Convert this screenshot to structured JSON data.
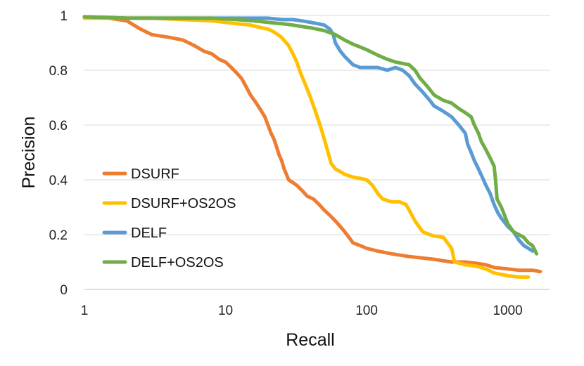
{
  "chart_data": {
    "type": "line",
    "xlabel": "Recall",
    "ylabel": "Precision",
    "xscale": "log",
    "xlim": [
      1,
      2000
    ],
    "ylim": [
      0,
      1
    ],
    "xticks": [
      1,
      10,
      100,
      1000
    ],
    "xtick_labels": [
      "1",
      "10",
      "100",
      "1000"
    ],
    "yticks": [
      0,
      0.2,
      0.4,
      0.6,
      0.8,
      1
    ],
    "ytick_labels": [
      "0",
      "0.2",
      "0.4",
      "0.6",
      "0.8",
      "1"
    ],
    "grid": "horizontal",
    "legend_placement": "lower-left",
    "series": [
      {
        "name": "DSURF",
        "color": "#ed7d31",
        "points": [
          [
            1,
            0.995
          ],
          [
            1.5,
            0.99
          ],
          [
            2,
            0.98
          ],
          [
            2.5,
            0.95
          ],
          [
            3,
            0.93
          ],
          [
            4,
            0.92
          ],
          [
            5,
            0.91
          ],
          [
            6,
            0.89
          ],
          [
            7,
            0.87
          ],
          [
            8,
            0.86
          ],
          [
            9,
            0.84
          ],
          [
            10,
            0.83
          ],
          [
            11,
            0.81
          ],
          [
            12,
            0.79
          ],
          [
            13,
            0.77
          ],
          [
            14,
            0.74
          ],
          [
            15,
            0.71
          ],
          [
            16,
            0.69
          ],
          [
            17,
            0.67
          ],
          [
            18,
            0.65
          ],
          [
            19,
            0.63
          ],
          [
            20,
            0.6
          ],
          [
            21,
            0.57
          ],
          [
            22,
            0.55
          ],
          [
            23,
            0.52
          ],
          [
            24,
            0.49
          ],
          [
            25,
            0.47
          ],
          [
            26,
            0.44
          ],
          [
            27,
            0.42
          ],
          [
            28,
            0.4
          ],
          [
            30,
            0.39
          ],
          [
            32,
            0.38
          ],
          [
            35,
            0.36
          ],
          [
            38,
            0.34
          ],
          [
            42,
            0.33
          ],
          [
            46,
            0.31
          ],
          [
            50,
            0.29
          ],
          [
            55,
            0.27
          ],
          [
            60,
            0.25
          ],
          [
            65,
            0.23
          ],
          [
            70,
            0.21
          ],
          [
            75,
            0.19
          ],
          [
            80,
            0.17
          ],
          [
            90,
            0.16
          ],
          [
            100,
            0.15
          ],
          [
            120,
            0.14
          ],
          [
            150,
            0.13
          ],
          [
            200,
            0.12
          ],
          [
            300,
            0.11
          ],
          [
            400,
            0.1
          ],
          [
            500,
            0.1
          ],
          [
            600,
            0.095
          ],
          [
            700,
            0.09
          ],
          [
            800,
            0.08
          ],
          [
            1000,
            0.075
          ],
          [
            1200,
            0.07
          ],
          [
            1500,
            0.07
          ],
          [
            1700,
            0.065
          ]
        ]
      },
      {
        "name": "DSURF+OS2OS",
        "color": "#ffc000",
        "points": [
          [
            1,
            0.99
          ],
          [
            2,
            0.99
          ],
          [
            3,
            0.99
          ],
          [
            5,
            0.985
          ],
          [
            8,
            0.98
          ],
          [
            10,
            0.975
          ],
          [
            12,
            0.97
          ],
          [
            15,
            0.965
          ],
          [
            18,
            0.955
          ],
          [
            20,
            0.95
          ],
          [
            22,
            0.94
          ],
          [
            25,
            0.92
          ],
          [
            28,
            0.89
          ],
          [
            30,
            0.86
          ],
          [
            32,
            0.83
          ],
          [
            34,
            0.79
          ],
          [
            36,
            0.76
          ],
          [
            38,
            0.73
          ],
          [
            40,
            0.7
          ],
          [
            42,
            0.67
          ],
          [
            44,
            0.64
          ],
          [
            46,
            0.61
          ],
          [
            48,
            0.58
          ],
          [
            50,
            0.55
          ],
          [
            52,
            0.52
          ],
          [
            54,
            0.49
          ],
          [
            56,
            0.46
          ],
          [
            60,
            0.44
          ],
          [
            65,
            0.43
          ],
          [
            70,
            0.42
          ],
          [
            80,
            0.41
          ],
          [
            90,
            0.405
          ],
          [
            100,
            0.4
          ],
          [
            110,
            0.38
          ],
          [
            120,
            0.35
          ],
          [
            130,
            0.33
          ],
          [
            150,
            0.32
          ],
          [
            170,
            0.32
          ],
          [
            190,
            0.31
          ],
          [
            200,
            0.29
          ],
          [
            220,
            0.25
          ],
          [
            250,
            0.21
          ],
          [
            280,
            0.2
          ],
          [
            300,
            0.195
          ],
          [
            350,
            0.19
          ],
          [
            400,
            0.15
          ],
          [
            420,
            0.1
          ],
          [
            500,
            0.09
          ],
          [
            600,
            0.085
          ],
          [
            700,
            0.075
          ],
          [
            800,
            0.06
          ],
          [
            1000,
            0.05
          ],
          [
            1200,
            0.045
          ],
          [
            1400,
            0.045
          ]
        ]
      },
      {
        "name": "DELF",
        "color": "#5b9bd5",
        "points": [
          [
            1,
            0.995
          ],
          [
            2,
            0.99
          ],
          [
            4,
            0.99
          ],
          [
            6,
            0.99
          ],
          [
            10,
            0.99
          ],
          [
            15,
            0.99
          ],
          [
            20,
            0.99
          ],
          [
            25,
            0.985
          ],
          [
            30,
            0.985
          ],
          [
            35,
            0.98
          ],
          [
            40,
            0.975
          ],
          [
            45,
            0.97
          ],
          [
            50,
            0.965
          ],
          [
            55,
            0.95
          ],
          [
            58,
            0.93
          ],
          [
            60,
            0.9
          ],
          [
            65,
            0.87
          ],
          [
            70,
            0.85
          ],
          [
            80,
            0.82
          ],
          [
            90,
            0.81
          ],
          [
            100,
            0.81
          ],
          [
            120,
            0.81
          ],
          [
            140,
            0.8
          ],
          [
            160,
            0.81
          ],
          [
            180,
            0.8
          ],
          [
            200,
            0.78
          ],
          [
            220,
            0.75
          ],
          [
            250,
            0.72
          ],
          [
            280,
            0.69
          ],
          [
            300,
            0.67
          ],
          [
            350,
            0.65
          ],
          [
            400,
            0.63
          ],
          [
            450,
            0.6
          ],
          [
            500,
            0.57
          ],
          [
            520,
            0.53
          ],
          [
            550,
            0.5
          ],
          [
            580,
            0.47
          ],
          [
            620,
            0.44
          ],
          [
            660,
            0.41
          ],
          [
            700,
            0.38
          ],
          [
            750,
            0.35
          ],
          [
            800,
            0.31
          ],
          [
            850,
            0.28
          ],
          [
            900,
            0.26
          ],
          [
            1000,
            0.23
          ],
          [
            1100,
            0.21
          ],
          [
            1200,
            0.18
          ],
          [
            1300,
            0.16
          ],
          [
            1400,
            0.15
          ],
          [
            1500,
            0.14
          ]
        ]
      },
      {
        "name": "DELF+OS2OS",
        "color": "#70ad47",
        "points": [
          [
            1,
            0.995
          ],
          [
            2,
            0.99
          ],
          [
            4,
            0.99
          ],
          [
            8,
            0.99
          ],
          [
            12,
            0.985
          ],
          [
            16,
            0.98
          ],
          [
            20,
            0.975
          ],
          [
            25,
            0.97
          ],
          [
            30,
            0.965
          ],
          [
            40,
            0.955
          ],
          [
            50,
            0.945
          ],
          [
            60,
            0.93
          ],
          [
            70,
            0.91
          ],
          [
            80,
            0.895
          ],
          [
            90,
            0.885
          ],
          [
            100,
            0.875
          ],
          [
            120,
            0.855
          ],
          [
            140,
            0.84
          ],
          [
            160,
            0.83
          ],
          [
            180,
            0.825
          ],
          [
            200,
            0.82
          ],
          [
            220,
            0.8
          ],
          [
            240,
            0.77
          ],
          [
            260,
            0.75
          ],
          [
            280,
            0.73
          ],
          [
            300,
            0.71
          ],
          [
            350,
            0.69
          ],
          [
            400,
            0.68
          ],
          [
            450,
            0.66
          ],
          [
            500,
            0.645
          ],
          [
            550,
            0.63
          ],
          [
            580,
            0.6
          ],
          [
            620,
            0.57
          ],
          [
            650,
            0.54
          ],
          [
            700,
            0.51
          ],
          [
            750,
            0.48
          ],
          [
            800,
            0.45
          ],
          [
            820,
            0.4
          ],
          [
            840,
            0.33
          ],
          [
            900,
            0.3
          ],
          [
            950,
            0.27
          ],
          [
            1000,
            0.24
          ],
          [
            1100,
            0.21
          ],
          [
            1200,
            0.2
          ],
          [
            1300,
            0.19
          ],
          [
            1400,
            0.17
          ],
          [
            1500,
            0.16
          ],
          [
            1600,
            0.13
          ]
        ]
      }
    ]
  }
}
